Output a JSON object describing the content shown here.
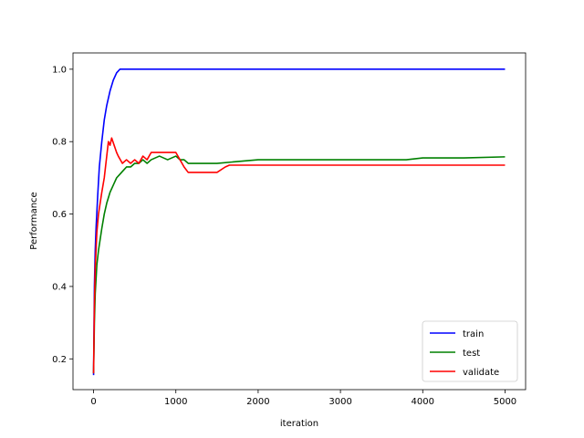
{
  "chart_data": {
    "type": "line",
    "title": "",
    "xlabel": "iteration",
    "ylabel": "Performance",
    "xlim": [
      -250,
      5250
    ],
    "ylim": [
      0.115,
      1.045
    ],
    "xticks": [
      0,
      1000,
      2000,
      3000,
      4000,
      5000
    ],
    "xtick_labels": [
      "0",
      "1000",
      "2000",
      "3000",
      "4000",
      "5000"
    ],
    "yticks": [
      0.2,
      0.4,
      0.6,
      0.8,
      1.0
    ],
    "ytick_labels": [
      "0.2",
      "0.4",
      "0.6",
      "0.8",
      "1.0"
    ],
    "grid": false,
    "legend_position": "lower-right",
    "series": [
      {
        "name": "train",
        "color": "#0000ff",
        "x": [
          0,
          10,
          20,
          30,
          50,
          70,
          100,
          130,
          160,
          200,
          240,
          280,
          320,
          400,
          600,
          700,
          1000,
          2000,
          3000,
          4000,
          5000
        ],
        "y": [
          0.155,
          0.4,
          0.5,
          0.56,
          0.65,
          0.73,
          0.8,
          0.86,
          0.9,
          0.94,
          0.97,
          0.99,
          1.0,
          1.0,
          1.0,
          1.0,
          1.0,
          1.0,
          1.0,
          1.0,
          1.0
        ]
      },
      {
        "name": "test",
        "color": "#008000",
        "x": [
          0,
          10,
          20,
          40,
          60,
          80,
          100,
          130,
          160,
          200,
          240,
          280,
          320,
          360,
          400,
          450,
          500,
          550,
          600,
          650,
          700,
          800,
          900,
          1000,
          1050,
          1100,
          1150,
          1500,
          2000,
          3000,
          3800,
          4000,
          4500,
          5000
        ],
        "y": [
          0.16,
          0.3,
          0.38,
          0.46,
          0.5,
          0.53,
          0.56,
          0.6,
          0.63,
          0.66,
          0.68,
          0.7,
          0.71,
          0.72,
          0.73,
          0.73,
          0.74,
          0.74,
          0.75,
          0.74,
          0.75,
          0.76,
          0.75,
          0.76,
          0.75,
          0.75,
          0.74,
          0.74,
          0.75,
          0.75,
          0.75,
          0.755,
          0.755,
          0.758
        ]
      },
      {
        "name": "validate",
        "color": "#ff0000",
        "x": [
          0,
          10,
          20,
          40,
          60,
          80,
          100,
          130,
          160,
          180,
          200,
          220,
          250,
          280,
          300,
          350,
          400,
          450,
          500,
          550,
          600,
          650,
          700,
          800,
          900,
          1000,
          1050,
          1100,
          1150,
          1200,
          1300,
          1500,
          1600,
          1650,
          2000,
          3000,
          4000,
          5000
        ],
        "y": [
          0.16,
          0.35,
          0.45,
          0.55,
          0.6,
          0.63,
          0.66,
          0.7,
          0.76,
          0.8,
          0.79,
          0.81,
          0.79,
          0.77,
          0.76,
          0.74,
          0.75,
          0.74,
          0.75,
          0.74,
          0.76,
          0.75,
          0.77,
          0.77,
          0.77,
          0.77,
          0.75,
          0.73,
          0.715,
          0.715,
          0.715,
          0.715,
          0.73,
          0.735,
          0.735,
          0.735,
          0.735,
          0.735
        ]
      }
    ]
  }
}
